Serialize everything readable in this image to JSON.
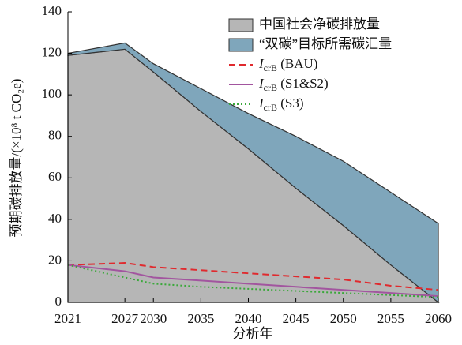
{
  "chart_data": {
    "type": "area",
    "x": [
      2021,
      2027,
      2030,
      2035,
      2040,
      2045,
      2050,
      2055,
      2060
    ],
    "series": [
      {
        "name": "中国社会净碳排放量",
        "type": "area",
        "color": "#b6b6b6",
        "values": [
          119,
          122,
          111,
          92,
          74,
          55,
          37,
          18,
          0
        ]
      },
      {
        "name": "“双碳”目标所需碳汇量",
        "type": "area",
        "color": "#7fa6bb",
        "values": [
          1,
          3,
          4,
          11,
          17,
          25,
          31,
          35,
          38
        ]
      },
      {
        "name": "IcrB (BAU)",
        "type": "line",
        "dash": "dashed",
        "color": "#e02a2e",
        "values": [
          18,
          19,
          17,
          15.5,
          14,
          12.5,
          11,
          8,
          6
        ]
      },
      {
        "name": "IcrB (S1&S2)",
        "type": "line",
        "dash": "solid",
        "color": "#a2559f",
        "values": [
          18,
          15,
          12,
          10.5,
          9,
          7.5,
          6,
          4.5,
          3
        ]
      },
      {
        "name": "IcrB (S3)",
        "type": "line",
        "dash": "dotted",
        "color": "#3aa83a",
        "values": [
          18,
          12,
          9,
          7.5,
          6.5,
          5.5,
          4.5,
          3.5,
          2.5
        ]
      }
    ],
    "stacked": true,
    "xlabel": "分析年",
    "ylabel": "预期碳排放量/(×10⁸ t CO₂e)",
    "xlim": [
      2021,
      2060
    ],
    "xticks": [
      2021,
      2027,
      2030,
      2035,
      2040,
      2045,
      2050,
      2055,
      2060
    ],
    "ylim": [
      0,
      140
    ],
    "yticks": [
      0,
      20,
      40,
      60,
      80,
      100,
      120,
      140
    ],
    "legend": "upper right"
  }
}
